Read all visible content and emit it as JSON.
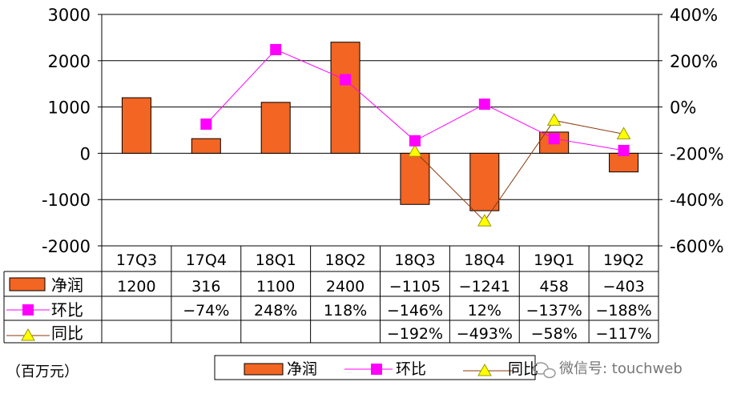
{
  "chart_data": {
    "type": "bar",
    "categories": [
      "17Q3",
      "17Q4",
      "18Q1",
      "18Q2",
      "18Q3",
      "18Q4",
      "19Q1",
      "19Q2"
    ],
    "left_axis": {
      "ylim": [
        -2000,
        3000
      ],
      "ticks": [
        "3000",
        "2000",
        "1000",
        "0",
        "-1000",
        "-2000"
      ],
      "tick_values": [
        3000,
        2000,
        1000,
        0,
        -1000,
        -2000
      ]
    },
    "right_axis": {
      "ylim": [
        -600,
        400
      ],
      "ticks": [
        "400%",
        "200%",
        "0%",
        "-200%",
        "-400%",
        "-600%"
      ],
      "tick_values": [
        400,
        200,
        0,
        -200,
        -400,
        -600
      ]
    },
    "series": [
      {
        "name": "净润",
        "kind": "bar",
        "axis": "left",
        "color": "#f26522",
        "values": [
          1200,
          316,
          1100,
          2400,
          -1105,
          -1241,
          458,
          -403
        ],
        "labels": [
          "1200",
          "316",
          "1100",
          "2400",
          "−1105",
          "−1241",
          "458",
          "−403"
        ]
      },
      {
        "name": "环比",
        "kind": "line",
        "axis": "right",
        "color": "#ff00ff",
        "values": [
          null,
          -74,
          248,
          118,
          -146,
          12,
          -137,
          -188
        ],
        "labels": [
          "",
          "−74%",
          "248%",
          "118%",
          "−146%",
          "12%",
          "−137%",
          "−188%"
        ]
      },
      {
        "name": "同比",
        "kind": "line",
        "axis": "right",
        "color": "#8b3a0f",
        "marker_color": "#ffff00",
        "values": [
          null,
          null,
          null,
          null,
          -192,
          -493,
          -58,
          -117
        ],
        "labels": [
          "",
          "",
          "",
          "",
          "−192%",
          "−493%",
          "−58%",
          "−117%"
        ]
      }
    ],
    "unit_label": "（百万元）",
    "legend": [
      "净润",
      "环比",
      "同比"
    ]
  },
  "watermark": "微信号: touchweb"
}
